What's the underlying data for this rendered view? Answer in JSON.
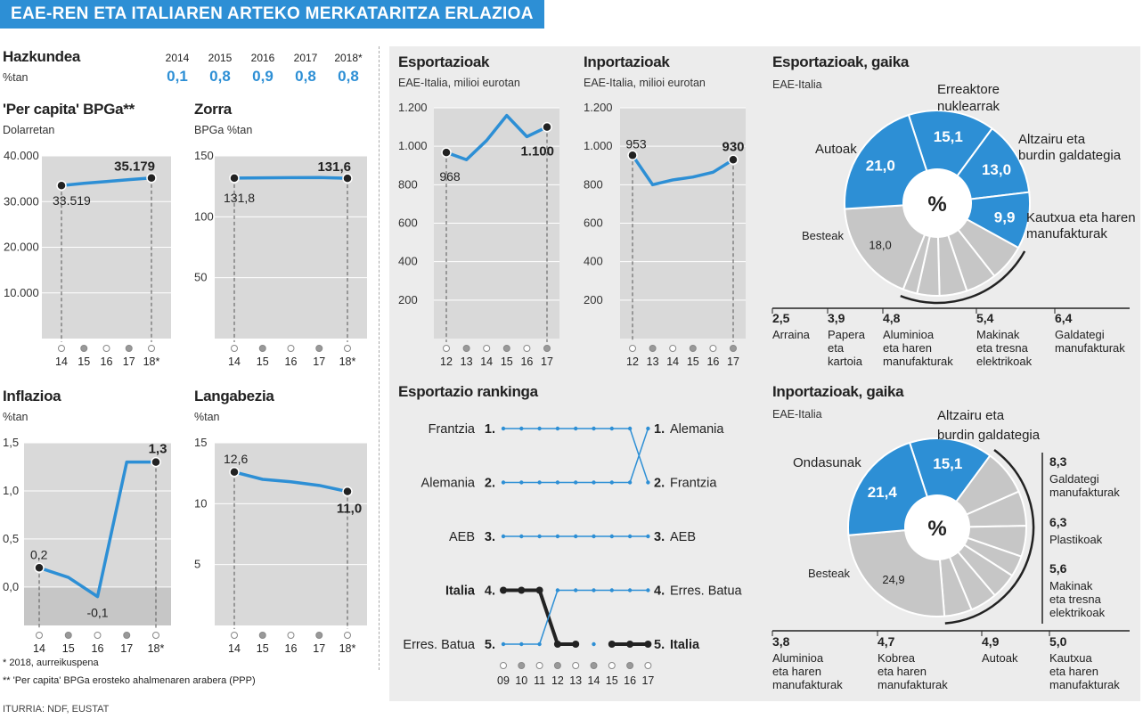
{
  "header": {
    "title": "EAE-REN ETA ITALIAREN ARTEKO MERKATARITZA ERLAZIOA"
  },
  "growth": {
    "title": "Hazkundea",
    "unit": "%tan",
    "years": [
      "2014",
      "2015",
      "2016",
      "2017",
      "2018*"
    ],
    "values": [
      "0,1",
      "0,8",
      "0,9",
      "0,8",
      "0,8"
    ]
  },
  "footnotes": {
    "f1": "* 2018, aurreikuspena",
    "f2": "** 'Per capita' BPGa erosteko ahalmenaren arabera (PPP)",
    "source": "ITURRIA: NDF, EUSTAT"
  },
  "chart_data": [
    {
      "id": "bpg",
      "type": "line",
      "title": "'Per capita' BPGa**",
      "unit": "Dolarretan",
      "x": [
        "14",
        "15",
        "16",
        "17",
        "18*"
      ],
      "values": [
        33519,
        34000,
        34400,
        34800,
        35179
      ],
      "yticks": [
        "40.000",
        "30.000",
        "20.000",
        "10.000"
      ],
      "ylim": [
        0,
        40000
      ],
      "labels": {
        "first": "33.519",
        "last": "35.179"
      }
    },
    {
      "id": "zorra",
      "type": "line",
      "title": "Zorra",
      "unit": "BPGa %tan",
      "x": [
        "14",
        "15",
        "16",
        "17",
        "18*"
      ],
      "values": [
        131.8,
        132.0,
        132.2,
        132.3,
        131.6
      ],
      "yticks": [
        "150",
        "100",
        "50"
      ],
      "ylim": [
        0,
        150
      ],
      "labels": {
        "first": "131,8",
        "last": "131,6"
      }
    },
    {
      "id": "inflazioa",
      "type": "line",
      "title": "Inflazioa",
      "unit": "%tan",
      "x": [
        "14",
        "15",
        "16",
        "17",
        "18*"
      ],
      "values": [
        0.2,
        0.1,
        -0.1,
        1.3,
        1.3
      ],
      "yticks": [
        "1,5",
        "1,0",
        "0,5",
        "0,0"
      ],
      "ylim": [
        -0.4,
        1.5
      ],
      "labels": {
        "first": "0,2",
        "low": "-0,1",
        "last": "1,3"
      }
    },
    {
      "id": "langabezia",
      "type": "line",
      "title": "Langabezia",
      "unit": "%tan",
      "x": [
        "14",
        "15",
        "16",
        "17",
        "18*"
      ],
      "values": [
        12.6,
        12.0,
        11.8,
        11.5,
        11.0
      ],
      "yticks": [
        "15",
        "10",
        "5"
      ],
      "ylim": [
        0,
        15
      ],
      "labels": {
        "first": "12,6",
        "last": "11,0"
      }
    },
    {
      "id": "esport",
      "type": "line",
      "title": "Esportazioak",
      "unit": "EAE-Italia, milioi eurotan",
      "x": [
        "12",
        "13",
        "14",
        "15",
        "16",
        "17"
      ],
      "values": [
        968,
        930,
        1030,
        1160,
        1050,
        1100
      ],
      "yticks": [
        "1.200",
        "1.000",
        "800",
        "600",
        "400",
        "200"
      ],
      "ylim": [
        0,
        1200
      ],
      "labels": {
        "first": "968",
        "last": "1.100"
      }
    },
    {
      "id": "inport",
      "type": "line",
      "title": "Inportazioak",
      "unit": "EAE-Italia, milioi eurotan",
      "x": [
        "12",
        "13",
        "14",
        "15",
        "16",
        "17"
      ],
      "values": [
        953,
        800,
        825,
        840,
        865,
        930
      ],
      "yticks": [
        "1.200",
        "1.000",
        "800",
        "600",
        "400",
        "200"
      ],
      "ylim": [
        0,
        1200
      ],
      "labels": {
        "first": "953",
        "last": "930"
      }
    },
    {
      "id": "esportGaika",
      "type": "pie",
      "title": "Esportazioak, gaika",
      "unit": "EAE-Italia",
      "center": "%",
      "big": [
        {
          "name": "Autoak",
          "value": "21,0"
        },
        {
          "name": "Erreaktore nuklearrak",
          "value": "15,1"
        },
        {
          "name": "Altzairu eta burdin galdategia",
          "value": "13,0"
        },
        {
          "name": "Kautxua eta haren manufakturak",
          "value": "9,9"
        },
        {
          "name": "Besteak",
          "value": "18,0"
        }
      ],
      "small": [
        {
          "value": "2,5",
          "name": "Arraina"
        },
        {
          "value": "3,9",
          "name": "Papera eta kartoia"
        },
        {
          "value": "4,8",
          "name": "Aluminioa eta haren manufakturak"
        },
        {
          "value": "5,4",
          "name": "Makinak eta tresna elektrikoak"
        },
        {
          "value": "6,4",
          "name": "Galdategi manufakturak"
        }
      ]
    },
    {
      "id": "inportGaika",
      "type": "pie",
      "title": "Inportazioak, gaika",
      "unit": "EAE-Italia",
      "center": "%",
      "big": [
        {
          "name": "Ondasunak",
          "value": "21,4"
        },
        {
          "name": "Altzairu eta burdin galdategia",
          "value": "15,1"
        },
        {
          "name": "Besteak",
          "value": "24,9"
        }
      ],
      "small": [
        {
          "value": "8,3",
          "name": "Galdategi manufakturak"
        },
        {
          "value": "6,3",
          "name": "Plastikoak"
        },
        {
          "value": "5,6",
          "name": "Makinak eta tresna elektrikoak"
        },
        {
          "value": "3,8",
          "name": "Aluminioa eta haren manufakturak"
        },
        {
          "value": "4,7",
          "name": "Kobrea eta haren manufakturak"
        },
        {
          "value": "4,9",
          "name": "Autoak"
        },
        {
          "value": "5,0",
          "name": "Kautxua eta haren manufakturak"
        }
      ]
    },
    {
      "id": "ranking",
      "type": "line",
      "title": "Esportazio rankinga",
      "x": [
        "09",
        "10",
        "11",
        "12",
        "13",
        "14",
        "15",
        "16",
        "17"
      ],
      "left": [
        {
          "rank": "1.",
          "name": "Frantzia"
        },
        {
          "rank": "2.",
          "name": "Alemania"
        },
        {
          "rank": "3.",
          "name": "AEB"
        },
        {
          "rank": "4.",
          "name": "Italia"
        },
        {
          "rank": "5.",
          "name": "Erres. Batua"
        }
      ],
      "right": [
        {
          "rank": "1.",
          "name": "Alemania"
        },
        {
          "rank": "2.",
          "name": "Frantzia"
        },
        {
          "rank": "3.",
          "name": "AEB"
        },
        {
          "rank": "4.",
          "name": "Erres. Batua"
        },
        {
          "rank": "5.",
          "name": "Italia"
        }
      ],
      "series": [
        {
          "name": "Frantzia",
          "values": [
            1,
            1,
            1,
            1,
            1,
            1,
            1,
            1,
            2
          ]
        },
        {
          "name": "Alemania",
          "values": [
            2,
            2,
            2,
            2,
            2,
            2,
            2,
            2,
            1
          ]
        },
        {
          "name": "AEB",
          "values": [
            3,
            3,
            3,
            3,
            3,
            3,
            3,
            3,
            3
          ]
        },
        {
          "name": "Italia",
          "values": [
            4,
            4,
            4,
            5,
            5,
            null,
            5,
            5,
            5
          ]
        },
        {
          "name": "Erres. Batua",
          "values": [
            5,
            5,
            5,
            4,
            4,
            4,
            4,
            4,
            4
          ]
        }
      ]
    }
  ]
}
